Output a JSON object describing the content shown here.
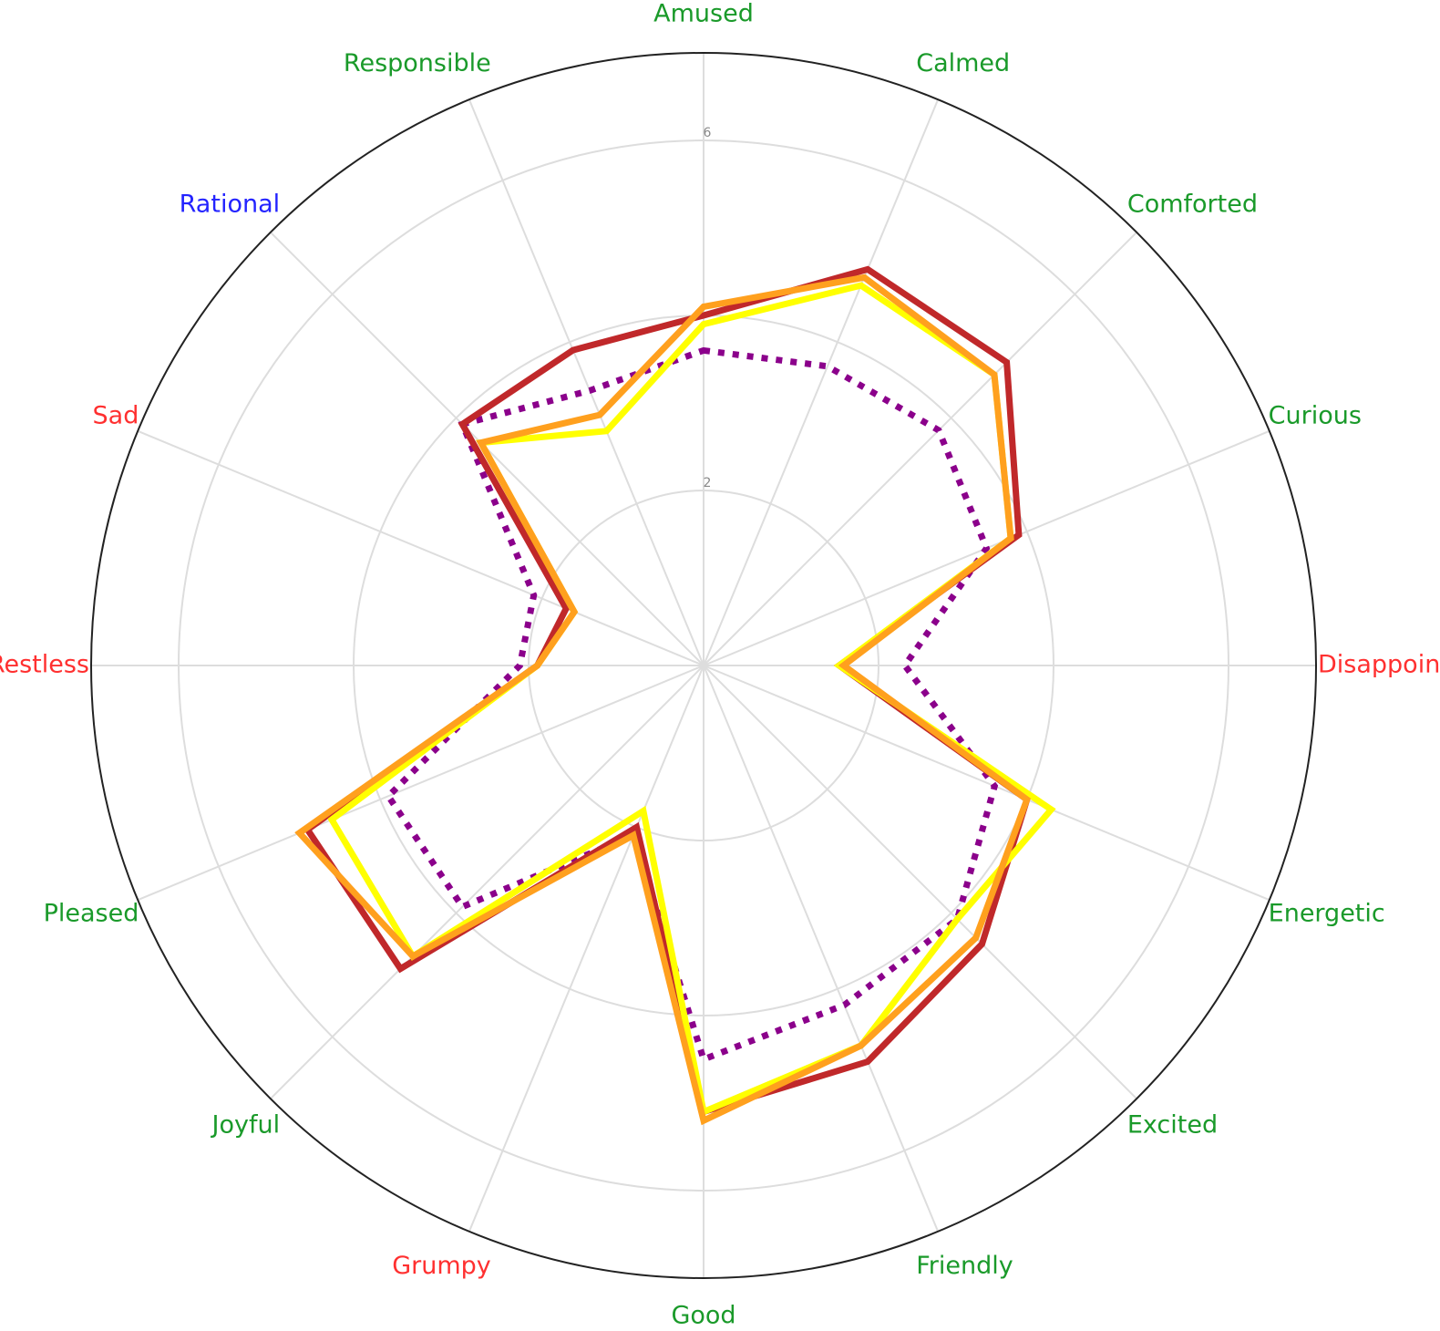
{
  "chart_data": {
    "type": "radar",
    "title": "",
    "categories": [
      "Amused",
      "Calmed",
      "Comforted",
      "Curious",
      "Disappointed",
      "Energetic",
      "Excited",
      "Friendly",
      "Good",
      "Grumpy",
      "Joyful",
      "Pleased",
      "Restless",
      "Sad",
      "Rational",
      "Responsible"
    ],
    "category_colors": [
      "#1a9a2a",
      "#1a9a2a",
      "#1a9a2a",
      "#1a9a2a",
      "#ff3030",
      "#1a9a2a",
      "#1a9a2a",
      "#1a9a2a",
      "#1a9a2a",
      "#ff3030",
      "#1a9a2a",
      "#1a9a2a",
      "#ff3030",
      "#ff3030",
      "#2323ff",
      "#1a9a2a"
    ],
    "ticks": [
      {
        "value": 2,
        "label": "2"
      },
      {
        "value": 6,
        "label": "6"
      }
    ],
    "rmax": 7,
    "grid_rings": [
      2,
      4,
      6
    ],
    "series": [
      {
        "color": "#8b008b",
        "style": "dotted",
        "values": [
          3.6,
          3.7,
          3.8,
          3.5,
          2.3,
          3.6,
          4.1,
          4.2,
          4.5,
          2.1,
          3.9,
          3.9,
          2.1,
          2.1,
          3.9,
          3.4
        ]
      },
      {
        "color": "#c0282a",
        "style": "solid",
        "values": [
          4.0,
          4.9,
          4.9,
          3.9,
          1.55,
          4.0,
          4.5,
          4.9,
          5.1,
          2.0,
          4.9,
          4.9,
          1.9,
          1.7,
          3.9,
          3.9
        ]
      },
      {
        "color": "#ffff00",
        "style": "solid",
        "values": [
          3.9,
          4.7,
          4.7,
          3.8,
          1.55,
          4.3,
          4.1,
          4.7,
          5.1,
          1.8,
          4.7,
          4.6,
          1.9,
          1.6,
          3.6,
          2.9
        ]
      },
      {
        "color": "#ffa01e",
        "style": "solid",
        "values": [
          4.1,
          4.8,
          4.7,
          3.8,
          1.6,
          4.0,
          4.4,
          4.7,
          5.2,
          2.1,
          4.7,
          5.0,
          1.9,
          1.6,
          3.6,
          3.1
        ]
      }
    ]
  }
}
